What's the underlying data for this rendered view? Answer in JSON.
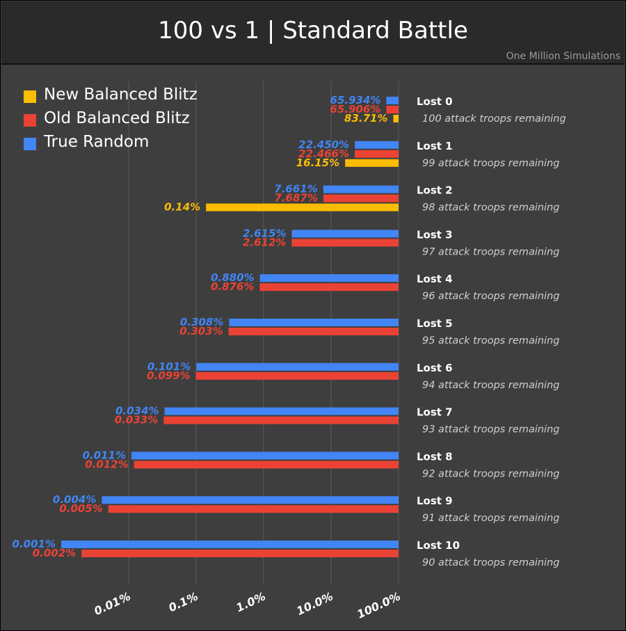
{
  "header": {
    "title": "100 vs 1 | Standard Battle",
    "subtitle": "One Million Simulations"
  },
  "legend": [
    {
      "label": "New Balanced Blitz",
      "color": "#fbbc04"
    },
    {
      "label": "Old Balanced Blitz",
      "color": "#ea4335"
    },
    {
      "label": "True Random",
      "color": "#4285f4"
    }
  ],
  "chart_data": {
    "type": "bar",
    "orientation": "horizontal",
    "title": "100 vs 1 | Standard Battle",
    "subtitle": "One Million Simulations",
    "x_scale": "log",
    "x_ticks": [
      0.01,
      0.1,
      1,
      10,
      100
    ],
    "x_tick_labels": [
      "0.01%",
      "0.1%",
      "1.0%",
      "10.0%",
      "100.0%"
    ],
    "grid": true,
    "legend_position": "top-left",
    "categories": [
      "Lost 0",
      "Lost 1",
      "Lost 2",
      "Lost 3",
      "Lost 4",
      "Lost 5",
      "Lost 6",
      "Lost 7",
      "Lost 8",
      "Lost 9",
      "Lost 10"
    ],
    "category_subtitles": [
      "100 attack troops remaining",
      "99 attack troops remaining",
      "98 attack troops remaining",
      "97 attack troops remaining",
      "96 attack troops remaining",
      "95 attack troops remaining",
      "94 attack troops remaining",
      "93 attack troops remaining",
      "92 attack troops remaining",
      "91 attack troops remaining",
      "90 attack troops remaining"
    ],
    "series": [
      {
        "name": "True Random",
        "color": "#4285f4",
        "values": [
          65.934,
          22.45,
          7.661,
          2.615,
          0.88,
          0.308,
          0.101,
          0.034,
          0.011,
          0.004,
          0.001
        ],
        "labels": [
          "65.934%",
          "22.450%",
          "7.661%",
          "2.615%",
          "0.880%",
          "0.308%",
          "0.101%",
          "0.034%",
          "0.011%",
          "0.004%",
          "0.001%"
        ]
      },
      {
        "name": "Old Balanced Blitz",
        "color": "#ea4335",
        "values": [
          65.906,
          22.466,
          7.687,
          2.612,
          0.876,
          0.303,
          0.099,
          0.033,
          0.012,
          0.005,
          0.002
        ],
        "labels": [
          "65.906%",
          "22.466%",
          "7.687%",
          "2.612%",
          "0.876%",
          "0.303%",
          "0.099%",
          "0.033%",
          "0.012%",
          "0.005%",
          "0.002%"
        ]
      },
      {
        "name": "New Balanced Blitz",
        "color": "#fbbc04",
        "values": [
          83.71,
          16.15,
          0.14,
          null,
          null,
          null,
          null,
          null,
          null,
          null,
          null
        ],
        "labels": [
          "83.71%",
          "16.15%",
          "0.14%",
          null,
          null,
          null,
          null,
          null,
          null,
          null,
          null
        ]
      }
    ]
  }
}
